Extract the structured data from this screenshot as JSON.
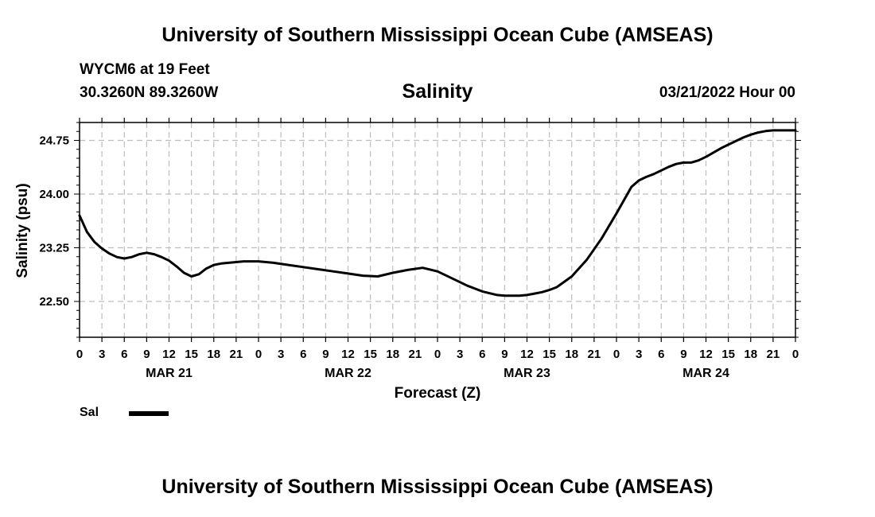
{
  "header": {
    "title": "University of Southern Mississippi Ocean Cube (AMSEAS)",
    "station": "WYCM6 at 19 Feet",
    "coords": "30.3260N  89.3260W",
    "date": "03/21/2022 Hour 00"
  },
  "footer": {
    "title": "University of Southern Mississippi Ocean Cube (AMSEAS)"
  },
  "chart_data": {
    "type": "line",
    "title": "Salinity",
    "xlabel": "Forecast (Z)",
    "ylabel": "Salinity (psu)",
    "xlim": [
      0,
      96
    ],
    "ylim": [
      22.0,
      25.0
    ],
    "yticks": [
      22.5,
      23.25,
      24.0,
      24.75
    ],
    "ytick_labels": [
      "22.50",
      "23.25",
      "24.00",
      "24.75"
    ],
    "xtick_hours": [
      0,
      3,
      6,
      9,
      12,
      15,
      18,
      21,
      24,
      27,
      30,
      33,
      36,
      39,
      42,
      45,
      48,
      51,
      54,
      57,
      60,
      63,
      66,
      69,
      72,
      75,
      78,
      81,
      84,
      87,
      90,
      93,
      96
    ],
    "xtick_labels": [
      "0",
      "3",
      "6",
      "9",
      "12",
      "15",
      "18",
      "21",
      "0",
      "3",
      "6",
      "9",
      "12",
      "15",
      "18",
      "21",
      "0",
      "3",
      "6",
      "9",
      "12",
      "15",
      "18",
      "21",
      "0",
      "3",
      "6",
      "9",
      "12",
      "15",
      "18",
      "21",
      "0"
    ],
    "day_labels": [
      {
        "hour": 12,
        "label": "MAR 21"
      },
      {
        "hour": 36,
        "label": "MAR 22"
      },
      {
        "hour": 60,
        "label": "MAR 23"
      },
      {
        "hour": 84,
        "label": "MAR 24"
      }
    ],
    "grid": true,
    "legend": "bottom-left",
    "series": [
      {
        "name": "Sal",
        "x": [
          0,
          1,
          2,
          3,
          4,
          5,
          6,
          7,
          8,
          9,
          10,
          11,
          12,
          13,
          14,
          15,
          16,
          17,
          18,
          19,
          20,
          21,
          22,
          23,
          24,
          26,
          28,
          30,
          32,
          34,
          36,
          38,
          40,
          42,
          44,
          46,
          48,
          50,
          52,
          54,
          56,
          57,
          58,
          59,
          60,
          61,
          62,
          63,
          64,
          66,
          68,
          70,
          72,
          74,
          75,
          76,
          77,
          78,
          79,
          80,
          81,
          82,
          83,
          84,
          85,
          86,
          87,
          88,
          89,
          90,
          91,
          92,
          93,
          94,
          95,
          96
        ],
        "values": [
          23.7,
          23.47,
          23.33,
          23.24,
          23.17,
          23.12,
          23.1,
          23.12,
          23.16,
          23.18,
          23.16,
          23.12,
          23.07,
          22.99,
          22.9,
          22.85,
          22.88,
          22.96,
          23.01,
          23.03,
          23.04,
          23.05,
          23.06,
          23.06,
          23.06,
          23.04,
          23.01,
          22.98,
          22.95,
          22.92,
          22.89,
          22.86,
          22.85,
          22.9,
          22.94,
          22.97,
          22.92,
          22.82,
          22.72,
          22.64,
          22.59,
          22.58,
          22.58,
          22.58,
          22.59,
          22.61,
          22.63,
          22.66,
          22.7,
          22.85,
          23.08,
          23.38,
          23.73,
          24.1,
          24.19,
          24.24,
          24.28,
          24.33,
          24.38,
          24.42,
          24.44,
          24.44,
          24.47,
          24.52,
          24.58,
          24.64,
          24.69,
          24.74,
          24.79,
          24.83,
          24.86,
          24.88,
          24.89,
          24.89,
          24.89,
          24.89
        ]
      }
    ]
  }
}
